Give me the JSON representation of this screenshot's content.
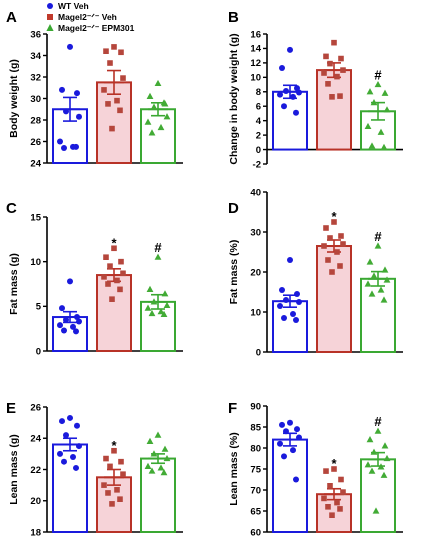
{
  "legend": {
    "items": [
      {
        "label": "WT Veh",
        "color": "#1a1adc",
        "marker": "circle"
      },
      {
        "label": "Magel2⁻ᐟ⁻ Veh",
        "color": "#c0392b",
        "marker": "square"
      },
      {
        "label": "Magel2⁻ᐟ⁻ EPM301",
        "color": "#3aa832",
        "marker": "triangle"
      }
    ]
  },
  "colors": {
    "wt": "#1a1adc",
    "veh": "#b83227",
    "veh_dots": "#b5463c",
    "veh_fill": "#f6d3d8",
    "epm": "#3aa832",
    "epm_dots": "#42ab35"
  },
  "chart_data": [
    {
      "panel": "A",
      "type": "bar",
      "ylabel": "Body weight (g)",
      "ylim": [
        24,
        36
      ],
      "yticks": [
        24,
        26,
        28,
        30,
        32,
        34,
        36
      ],
      "groups": [
        {
          "mean": 29.0,
          "sem": 1.1,
          "points": [
            34.8,
            30.8,
            30.5,
            28.8,
            28.3,
            26.0,
            25.5,
            25.4,
            25.5
          ]
        },
        {
          "mean": 31.5,
          "sem": 1.1,
          "points": [
            34.8,
            34.4,
            34.3,
            33.3,
            31.9,
            30.8,
            29.8,
            29.5,
            28.9,
            27.2
          ]
        },
        {
          "mean": 29.0,
          "sem": 0.6,
          "points": [
            31.4,
            30.2,
            29.5,
            29.2,
            28.3,
            27.8,
            27.3,
            26.8,
            29.6
          ]
        }
      ],
      "marks": [
        "",
        "",
        ""
      ]
    },
    {
      "panel": "B",
      "type": "bar",
      "ylabel": "Change in body weight (g)",
      "ylim": [
        -2,
        16
      ],
      "yticks": [
        -2,
        0,
        2,
        4,
        6,
        8,
        10,
        12,
        14,
        16
      ],
      "groups": [
        {
          "mean": 8.0,
          "sem": 0.9,
          "points": [
            13.8,
            11.3,
            8.5,
            8.1,
            7.9,
            7.6,
            7.3,
            6.0,
            5.1
          ]
        },
        {
          "mean": 11.0,
          "sem": 1.0,
          "points": [
            14.8,
            12.9,
            12.6,
            11.9,
            11.0,
            10.6,
            10.1,
            9.1,
            7.4,
            7.3
          ]
        },
        {
          "mean": 5.3,
          "sem": 1.2,
          "points": [
            9.0,
            8.0,
            7.8,
            6.5,
            5.5,
            3.2,
            2.4,
            0.5,
            0.3
          ]
        }
      ],
      "marks": [
        "",
        "",
        "#"
      ]
    },
    {
      "panel": "C",
      "type": "bar",
      "ylabel": "Fat mass (g)",
      "ylim": [
        0,
        15
      ],
      "yticks": [
        0,
        5,
        10,
        15
      ],
      "groups": [
        {
          "mean": 3.8,
          "sem": 0.6,
          "points": [
            7.8,
            4.8,
            3.8,
            3.5,
            3.3,
            2.9,
            2.7,
            2.3,
            2.2
          ]
        },
        {
          "mean": 8.5,
          "sem": 0.7,
          "points": [
            11.5,
            10.5,
            10.0,
            9.5,
            8.7,
            8.3,
            7.9,
            7.5,
            6.9,
            5.8
          ]
        },
        {
          "mean": 5.5,
          "sem": 0.8,
          "points": [
            10.5,
            6.9,
            6.4,
            5.5,
            5.1,
            4.8,
            4.4,
            4.2,
            4.1
          ]
        }
      ],
      "marks": [
        "",
        "*",
        "#"
      ]
    },
    {
      "panel": "D",
      "type": "bar",
      "ylabel": "Fat mass (%)",
      "ylim": [
        0,
        40
      ],
      "yticks": [
        0,
        10,
        20,
        30,
        40
      ],
      "groups": [
        {
          "mean": 12.7,
          "sem": 1.5,
          "points": [
            23.0,
            15.5,
            14.5,
            13.0,
            12.5,
            11.5,
            9.5,
            8.5,
            8.0
          ]
        },
        {
          "mean": 26.5,
          "sem": 1.5,
          "points": [
            32.5,
            31.0,
            29.0,
            28.5,
            27.0,
            26.5,
            25.0,
            23.0,
            21.5,
            20.0
          ]
        },
        {
          "mean": 18.3,
          "sem": 1.8,
          "points": [
            26.5,
            22.5,
            20.5,
            19.0,
            18.0,
            17.0,
            15.5,
            14.5,
            13.0
          ]
        }
      ],
      "marks": [
        "",
        "*",
        "#"
      ]
    },
    {
      "panel": "E",
      "type": "bar",
      "ylabel": "Lean mass (g)",
      "ylim": [
        18,
        26
      ],
      "yticks": [
        18,
        20,
        22,
        24,
        26
      ],
      "groups": [
        {
          "mean": 23.6,
          "sem": 0.4,
          "points": [
            25.3,
            25.1,
            24.8,
            24.2,
            23.5,
            23.0,
            22.8,
            22.5,
            22.1
          ]
        },
        {
          "mean": 21.5,
          "sem": 0.5,
          "points": [
            23.2,
            22.7,
            22.5,
            22.2,
            21.7,
            21.0,
            20.7,
            20.5,
            20.1,
            19.8
          ]
        },
        {
          "mean": 22.7,
          "sem": 0.3,
          "points": [
            24.2,
            23.8,
            23.3,
            23.0,
            22.7,
            22.2,
            22.1,
            21.9,
            21.8
          ]
        }
      ],
      "marks": [
        "",
        "*",
        ""
      ]
    },
    {
      "panel": "F",
      "type": "bar",
      "ylabel": "Lean mass (%)",
      "ylim": [
        60,
        90
      ],
      "yticks": [
        60,
        65,
        70,
        75,
        80,
        85,
        90
      ],
      "groups": [
        {
          "mean": 82.0,
          "sem": 1.5,
          "points": [
            86.0,
            85.5,
            84.5,
            84.0,
            82.5,
            81.0,
            79.5,
            78.0,
            72.5
          ]
        },
        {
          "mean": 69.0,
          "sem": 1.3,
          "points": [
            75.0,
            74.5,
            72.5,
            71.0,
            69.5,
            68.0,
            67.0,
            66.0,
            65.5,
            64.0
          ]
        },
        {
          "mean": 77.3,
          "sem": 1.6,
          "points": [
            84.0,
            82.0,
            80.5,
            79.0,
            77.5,
            76.0,
            75.5,
            74.5,
            73.5,
            65.0
          ]
        }
      ],
      "marks": [
        "",
        "*",
        "#"
      ]
    }
  ]
}
